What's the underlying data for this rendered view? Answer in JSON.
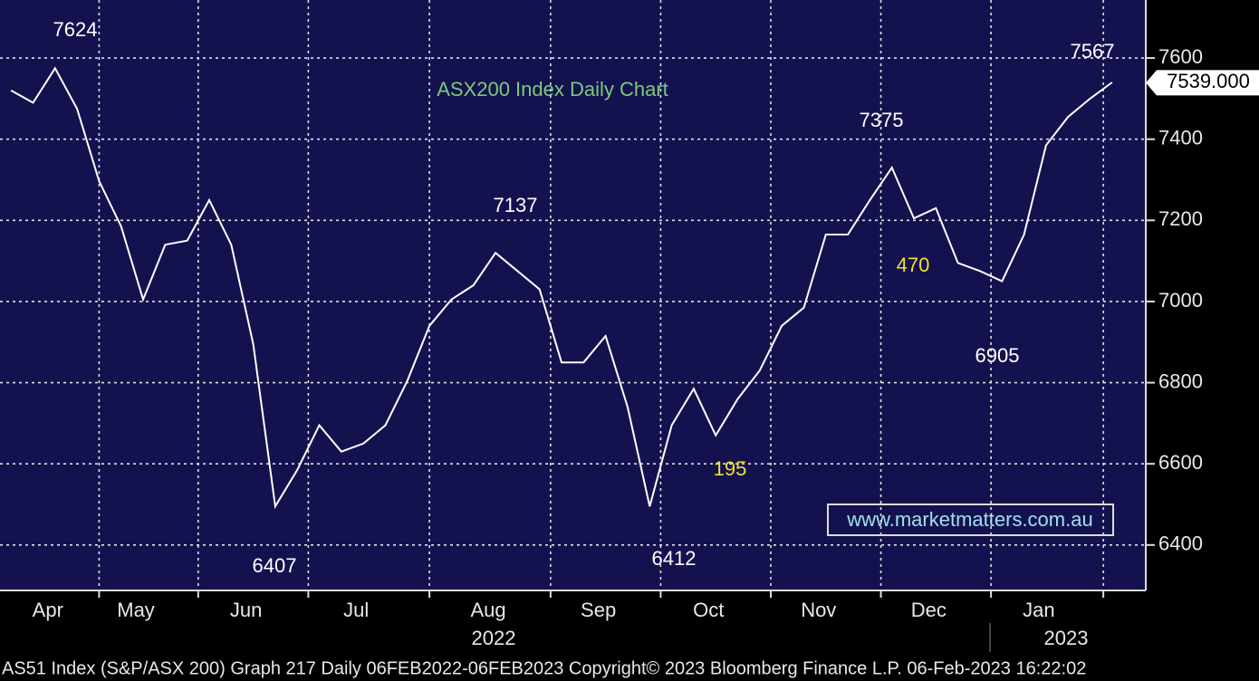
{
  "chart_data": {
    "type": "line",
    "title": "ASX200 Index Daily Chart",
    "title_color": "#7ec87e",
    "categories": [
      null,
      null,
      "Apr",
      null,
      null,
      null,
      "May",
      null,
      null,
      null,
      null,
      "Jun",
      null,
      null,
      null,
      null,
      "Jul",
      null,
      null,
      null,
      null,
      null,
      "Aug",
      null,
      null,
      null,
      null,
      "Sep",
      null,
      null,
      null,
      null,
      "Oct",
      null,
      null,
      null,
      null,
      "Nov",
      null,
      null,
      null,
      null,
      "Dec",
      null,
      null,
      null,
      null,
      "Jan",
      null,
      null,
      null
    ],
    "series": [
      {
        "color": "#ffffff",
        "values": [
          7520,
          7490,
          7575,
          7475,
          7297,
          7185,
          7005,
          7140,
          7150,
          7250,
          7140,
          6895,
          6495,
          6585,
          6695,
          6630,
          6650,
          6695,
          6805,
          6940,
          7005,
          7040,
          7120,
          7075,
          7030,
          6850,
          6850,
          6915,
          6740,
          6495,
          6695,
          6785,
          6670,
          6760,
          6830,
          6940,
          6985,
          7165,
          7165,
          7250,
          7330,
          7205,
          7230,
          7095,
          7075,
          7050,
          7165,
          7385,
          7455,
          7500,
          7540
        ]
      }
    ],
    "ylim": [
      6288,
      7743
    ],
    "yticks": [
      6400,
      6600,
      6800,
      7000,
      7200,
      7400,
      7600
    ],
    "grid": true,
    "years": [
      "2022",
      "2023"
    ],
    "last_price": {
      "value": 7539,
      "label": "7539.000"
    },
    "annotations": [
      {
        "text": "7624",
        "color": "#ffffff"
      },
      {
        "text": "6407",
        "color": "#ffffff"
      },
      {
        "text": "7137",
        "color": "#ffffff"
      },
      {
        "text": "6412",
        "color": "#ffffff"
      },
      {
        "text": "195",
        "color": "#f0e030"
      },
      {
        "text": "7375",
        "color": "#ffffff"
      },
      {
        "text": "470",
        "color": "#f0e030"
      },
      {
        "text": "6905",
        "color": "#ffffff"
      },
      {
        "text": "7567",
        "color": "#ffffff"
      }
    ],
    "watermark": "www.marketmatters.com.au",
    "footer": "AS51 Index (S&P/ASX 200) Graph 217  Daily 06FEB2022-06FEB2023  Copyright© 2023 Bloomberg Finance L.P.  06-Feb-2023 16:22:02"
  }
}
